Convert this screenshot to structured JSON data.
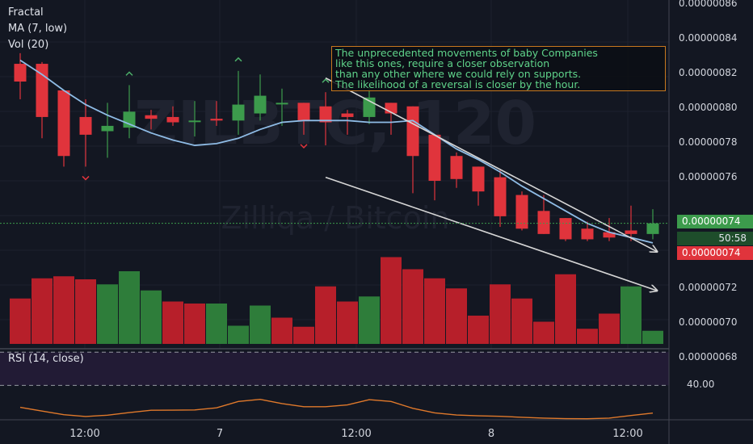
{
  "legend": {
    "fractal": "Fractal",
    "ma": "MA (7, low)",
    "vol": "Vol (20)"
  },
  "watermark": {
    "symbol": "ZILBTC, 120",
    "name": "Zilliqa / Bitcoin"
  },
  "annotation": {
    "lines": [
      "The unprecedented movements of baby Companies",
      "like this ones, require a closer observation",
      "than any other where we could rely on supports.",
      "The likelihood of a reversal is closer by the hour."
    ]
  },
  "price_axis": {
    "ticks": [
      "0.00000086",
      "0.00000084",
      "0.00000082",
      "0.00000080",
      "0.00000078",
      "0.00000076",
      "0.00000072",
      "0.00000070",
      "0.00000068"
    ],
    "current_price": "0.00000074",
    "countdown": "50:58",
    "low_price": "0.00000074"
  },
  "rsi": {
    "label": "RSI (14, close)",
    "tick": "40.00"
  },
  "time_axis": {
    "ticks": [
      "12:00",
      "7",
      "12:00",
      "8",
      "12:00"
    ]
  },
  "colors": {
    "up": "#3c9b4c",
    "down": "#e0343c",
    "ma": "#8fbce6",
    "rsi": "#e0792b",
    "trend": "#d6d6d6",
    "fractal_up": "#4caf6a",
    "fractal_down": "#e0343c"
  },
  "chart_data": {
    "type": "candlestick",
    "price_range": [
      6.72e-07,
      8.66e-07
    ],
    "candles": [
      {
        "o": 8.3e-07,
        "h": 8.36e-07,
        "l": 8.1e-07,
        "c": 8.2e-07
      },
      {
        "o": 8.3e-07,
        "h": 8.31e-07,
        "l": 7.88e-07,
        "c": 8e-07
      },
      {
        "o": 8.15e-07,
        "h": 8.15e-07,
        "l": 7.72e-07,
        "c": 7.78e-07
      },
      {
        "o": 8e-07,
        "h": 8.1e-07,
        "l": 7.72e-07,
        "c": 7.9e-07
      },
      {
        "o": 7.92e-07,
        "h": 8.08e-07,
        "l": 7.77e-07,
        "c": 7.95e-07
      },
      {
        "o": 7.94e-07,
        "h": 8.18e-07,
        "l": 7.88e-07,
        "c": 8.03e-07
      },
      {
        "o": 8.01e-07,
        "h": 8.04e-07,
        "l": 7.93e-07,
        "c": 7.99e-07
      },
      {
        "o": 8e-07,
        "h": 8.06e-07,
        "l": 7.95e-07,
        "c": 7.97e-07
      },
      {
        "o": 7.98e-07,
        "h": 8.09e-07,
        "l": 7.89e-07,
        "c": 7.98e-07
      },
      {
        "o": 7.99e-07,
        "h": 8.09e-07,
        "l": 7.95e-07,
        "c": 7.98e-07
      },
      {
        "o": 7.98e-07,
        "h": 8.26e-07,
        "l": 7.9e-07,
        "c": 8.07e-07
      },
      {
        "o": 8.02e-07,
        "h": 8.24e-07,
        "l": 7.98e-07,
        "c": 8.12e-07
      },
      {
        "o": 8.08e-07,
        "h": 8.16e-07,
        "l": 7.95e-07,
        "c": 8.08e-07
      },
      {
        "o": 8.08e-07,
        "h": 8.08e-07,
        "l": 7.9e-07,
        "c": 7.98e-07
      },
      {
        "o": 8.06e-07,
        "h": 8.14e-07,
        "l": 7.84e-07,
        "c": 7.97e-07
      },
      {
        "o": 8.02e-07,
        "h": 8.04e-07,
        "l": 7.9e-07,
        "c": 8e-07
      },
      {
        "o": 8e-07,
        "h": 8.17e-07,
        "l": 7.96e-07,
        "c": 8.11e-07
      },
      {
        "o": 8.08e-07,
        "h": 8.08e-07,
        "l": 7.9e-07,
        "c": 8.02e-07
      },
      {
        "o": 8.06e-07,
        "h": 8.06e-07,
        "l": 7.57e-07,
        "c": 7.78e-07
      },
      {
        "o": 7.9e-07,
        "h": 7.9e-07,
        "l": 7.53e-07,
        "c": 7.64e-07
      },
      {
        "o": 7.78e-07,
        "h": 7.8e-07,
        "l": 7.6e-07,
        "c": 7.65e-07
      },
      {
        "o": 7.72e-07,
        "h": 7.72e-07,
        "l": 7.5e-07,
        "c": 7.58e-07
      },
      {
        "o": 7.66e-07,
        "h": 7.7e-07,
        "l": 7.38e-07,
        "c": 7.44e-07
      },
      {
        "o": 7.56e-07,
        "h": 7.58e-07,
        "l": 7.36e-07,
        "c": 7.37e-07
      },
      {
        "o": 7.47e-07,
        "h": 7.56e-07,
        "l": 7.34e-07,
        "c": 7.34e-07
      },
      {
        "o": 7.43e-07,
        "h": 7.43e-07,
        "l": 7.3e-07,
        "c": 7.31e-07
      },
      {
        "o": 7.37e-07,
        "h": 7.41e-07,
        "l": 7.3e-07,
        "c": 7.31e-07
      },
      {
        "o": 7.35e-07,
        "h": 7.43e-07,
        "l": 7.3e-07,
        "c": 7.32e-07
      },
      {
        "o": 7.36e-07,
        "h": 7.5e-07,
        "l": 7.3e-07,
        "c": 7.34e-07
      },
      {
        "o": 7.34e-07,
        "h": 7.48e-07,
        "l": 7.31e-07,
        "c": 7.4e-07
      }
    ],
    "ma": [
      8.32e-07,
      8.24e-07,
      8.15e-07,
      8.07e-07,
      8.01e-07,
      7.96e-07,
      7.91e-07,
      7.87e-07,
      7.84e-07,
      7.85e-07,
      7.88e-07,
      7.93e-07,
      7.97e-07,
      7.98e-07,
      7.98e-07,
      7.98e-07,
      7.97e-07,
      7.97e-07,
      7.98e-07,
      7.9e-07,
      7.82e-07,
      7.76e-07,
      7.69e-07,
      7.61e-07,
      7.54e-07,
      7.47e-07,
      7.4e-07,
      7.35e-07,
      7.32e-07,
      7.29e-07
    ],
    "volume": [
      0.45,
      0.65,
      0.67,
      0.64,
      0.59,
      0.72,
      0.53,
      0.42,
      0.4,
      0.4,
      0.18,
      0.38,
      0.26,
      0.17,
      0.57,
      0.42,
      0.47,
      0.86,
      0.74,
      0.65,
      0.55,
      0.28,
      0.59,
      0.45,
      0.22,
      0.69,
      0.15,
      0.3,
      0.57,
      0.13
    ],
    "volume_up": [
      false,
      false,
      false,
      false,
      true,
      true,
      true,
      false,
      false,
      true,
      true,
      true,
      false,
      false,
      false,
      false,
      true,
      false,
      false,
      false,
      false,
      false,
      false,
      false,
      false,
      false,
      false,
      false,
      true,
      true
    ],
    "fractal_up": [
      5,
      10,
      14
    ],
    "fractal_down": [
      3,
      13
    ],
    "rsi": [
      40.6,
      38.3,
      36.1,
      35.0,
      35.8,
      37.4,
      38.8,
      38.9,
      39.0,
      40.3,
      44.2,
      45.5,
      42.9,
      41.0,
      41.0,
      42.1,
      45.3,
      44.2,
      40.0,
      37.2,
      35.9,
      35.4,
      35.1,
      34.5,
      34.0,
      33.7,
      33.6,
      34.0,
      35.6,
      37.1
    ],
    "rsi_bands": [
      30,
      70
    ],
    "trend_lines": [
      {
        "from": [
          14,
          8.22e-07
        ],
        "to": [
          29.2,
          7.24e-07
        ]
      },
      {
        "from": [
          14,
          7.66e-07
        ],
        "to": [
          29.2,
          7.02e-07
        ]
      }
    ]
  }
}
